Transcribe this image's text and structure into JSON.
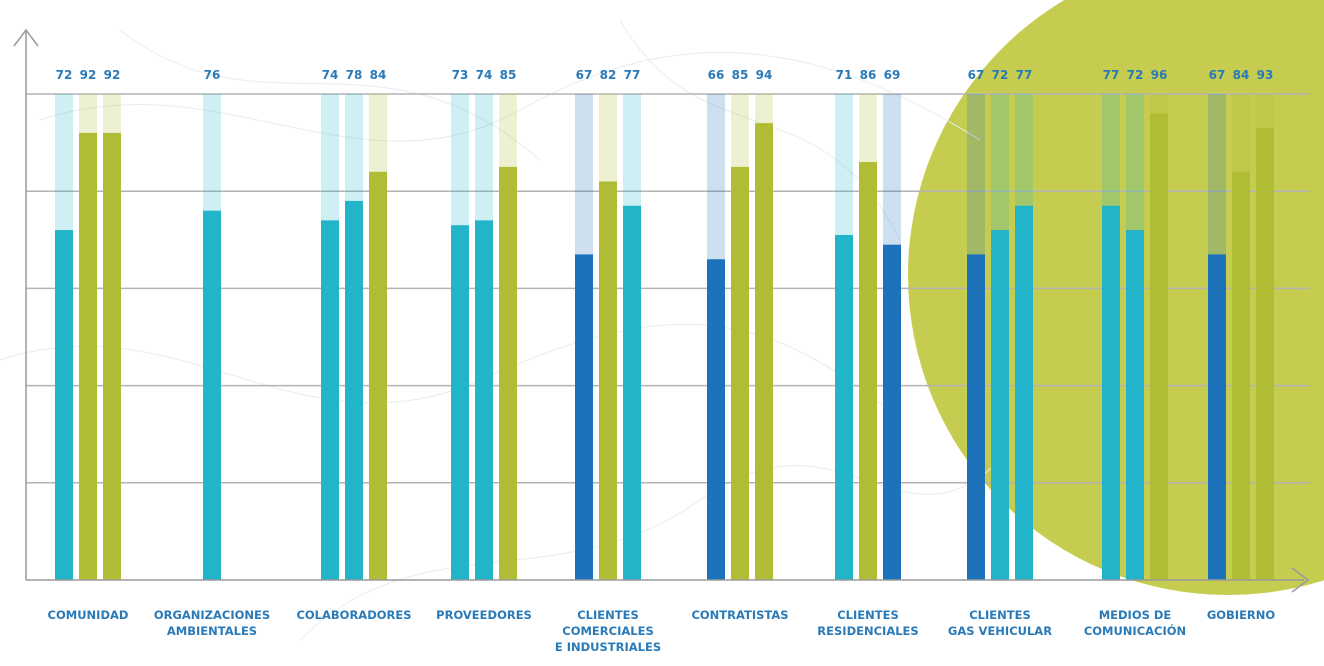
{
  "chart_data": {
    "type": "bar",
    "categories": [
      [
        "COMUNIDAD"
      ],
      [
        "ORGANIZACIONES",
        "AMBIENTALES"
      ],
      [
        "COLABORADORES"
      ],
      [
        "PROVEEDORES"
      ],
      [
        "CLIENTES",
        "COMERCIALES",
        "E INDUSTRIALES"
      ],
      [
        "CONTRATISTAS"
      ],
      [
        "CLIENTES",
        "RESIDENCIALES"
      ],
      [
        "CLIENTES",
        "GAS VEHICULAR"
      ],
      [
        "MEDIOS DE",
        "COMUNICACIÓN"
      ],
      [
        "GOBIERNO"
      ]
    ],
    "groups": [
      {
        "values": [
          72,
          92,
          92
        ],
        "colors": [
          "#22b4c8",
          "#b0bc33",
          "#b0bc33"
        ]
      },
      {
        "values": [
          76
        ],
        "colors": [
          "#22b4c8"
        ]
      },
      {
        "values": [
          74,
          78,
          84
        ],
        "colors": [
          "#22b4c8",
          "#22b4c8",
          "#b0bc33"
        ]
      },
      {
        "values": [
          73,
          74,
          85
        ],
        "colors": [
          "#22b4c8",
          "#22b4c8",
          "#b0bc33"
        ]
      },
      {
        "values": [
          67,
          82,
          77
        ],
        "colors": [
          "#1e72b9",
          "#b0bc33",
          "#22b4c8"
        ]
      },
      {
        "values": [
          66,
          85,
          94
        ],
        "colors": [
          "#1e72b9",
          "#b0bc33",
          "#b0bc33"
        ]
      },
      {
        "values": [
          71,
          86,
          69
        ],
        "colors": [
          "#22b4c8",
          "#b0bc33",
          "#1e72b9"
        ]
      },
      {
        "values": [
          67,
          72,
          77
        ],
        "colors": [
          "#1e72b9",
          "#22b4c8",
          "#22b4c8"
        ]
      },
      {
        "values": [
          77,
          72,
          96
        ],
        "colors": [
          "#22b4c8",
          "#22b4c8",
          "#b0bc33"
        ]
      },
      {
        "values": [
          67,
          84,
          93
        ],
        "colors": [
          "#1e72b9",
          "#b0bc33",
          "#b0bc33"
        ]
      }
    ],
    "ylim": [
      0,
      100
    ],
    "grid": true,
    "gridlines": [
      20,
      40,
      60,
      80,
      100
    ],
    "colors": {
      "blue": "#1e72b9",
      "cyan": "#22b4c8",
      "olive": "#b0bc33",
      "label": "#2a7ab8",
      "axis": "#9a9a9a",
      "circle": "#c3c947"
    }
  }
}
